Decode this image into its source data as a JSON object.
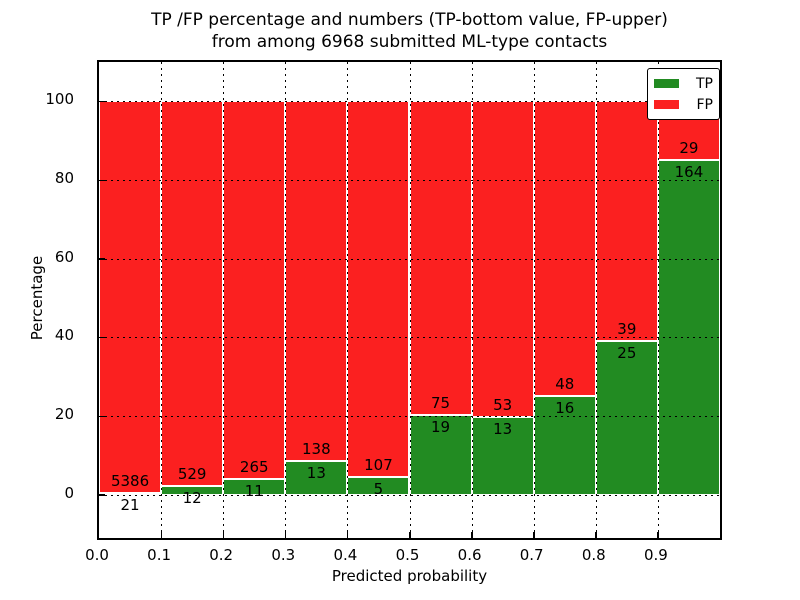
{
  "figure": {
    "title_line1": "TP /FP percentage and numbers (TP-bottom value, FP-upper)",
    "title_line2": "from among 6968 submitted ML-type contacts",
    "xlabel": "Predicted probability",
    "ylabel": "Percentage"
  },
  "legend": {
    "items": [
      {
        "label": "TP",
        "color": "#228b22"
      },
      {
        "label": "FP",
        "color": "#fb2020"
      }
    ]
  },
  "chart_data": {
    "type": "bar",
    "stacked": true,
    "normalized_to_percent": true,
    "title": "TP /FP percentage and numbers (TP-bottom value, FP-upper) from among 6968 submitted ML-type contacts",
    "xlabel": "Predicted probability",
    "ylabel": "Percentage",
    "total_contacts": 6968,
    "categories": [
      "0.0-0.1",
      "0.1-0.2",
      "0.2-0.3",
      "0.3-0.4",
      "0.4-0.5",
      "0.5-0.6",
      "0.6-0.7",
      "0.7-0.8",
      "0.8-0.9",
      "0.9-1.0"
    ],
    "x_tick_labels": [
      "0.0",
      "0.1",
      "0.2",
      "0.3",
      "0.4",
      "0.5",
      "0.6",
      "0.7",
      "0.8",
      "0.9"
    ],
    "y_ticks": [
      0,
      20,
      40,
      60,
      80,
      100
    ],
    "ylim": [
      -11,
      110
    ],
    "xlim": [
      0,
      1
    ],
    "grid": "dotted",
    "legend_position": "upper right",
    "series": [
      {
        "name": "TP",
        "color": "#228b22",
        "values": [
          21,
          12,
          11,
          13,
          5,
          19,
          13,
          16,
          25,
          164
        ]
      },
      {
        "name": "FP",
        "color": "#fb2020",
        "values": [
          5386,
          529,
          265,
          138,
          107,
          75,
          53,
          48,
          39,
          29
        ]
      }
    ]
  }
}
